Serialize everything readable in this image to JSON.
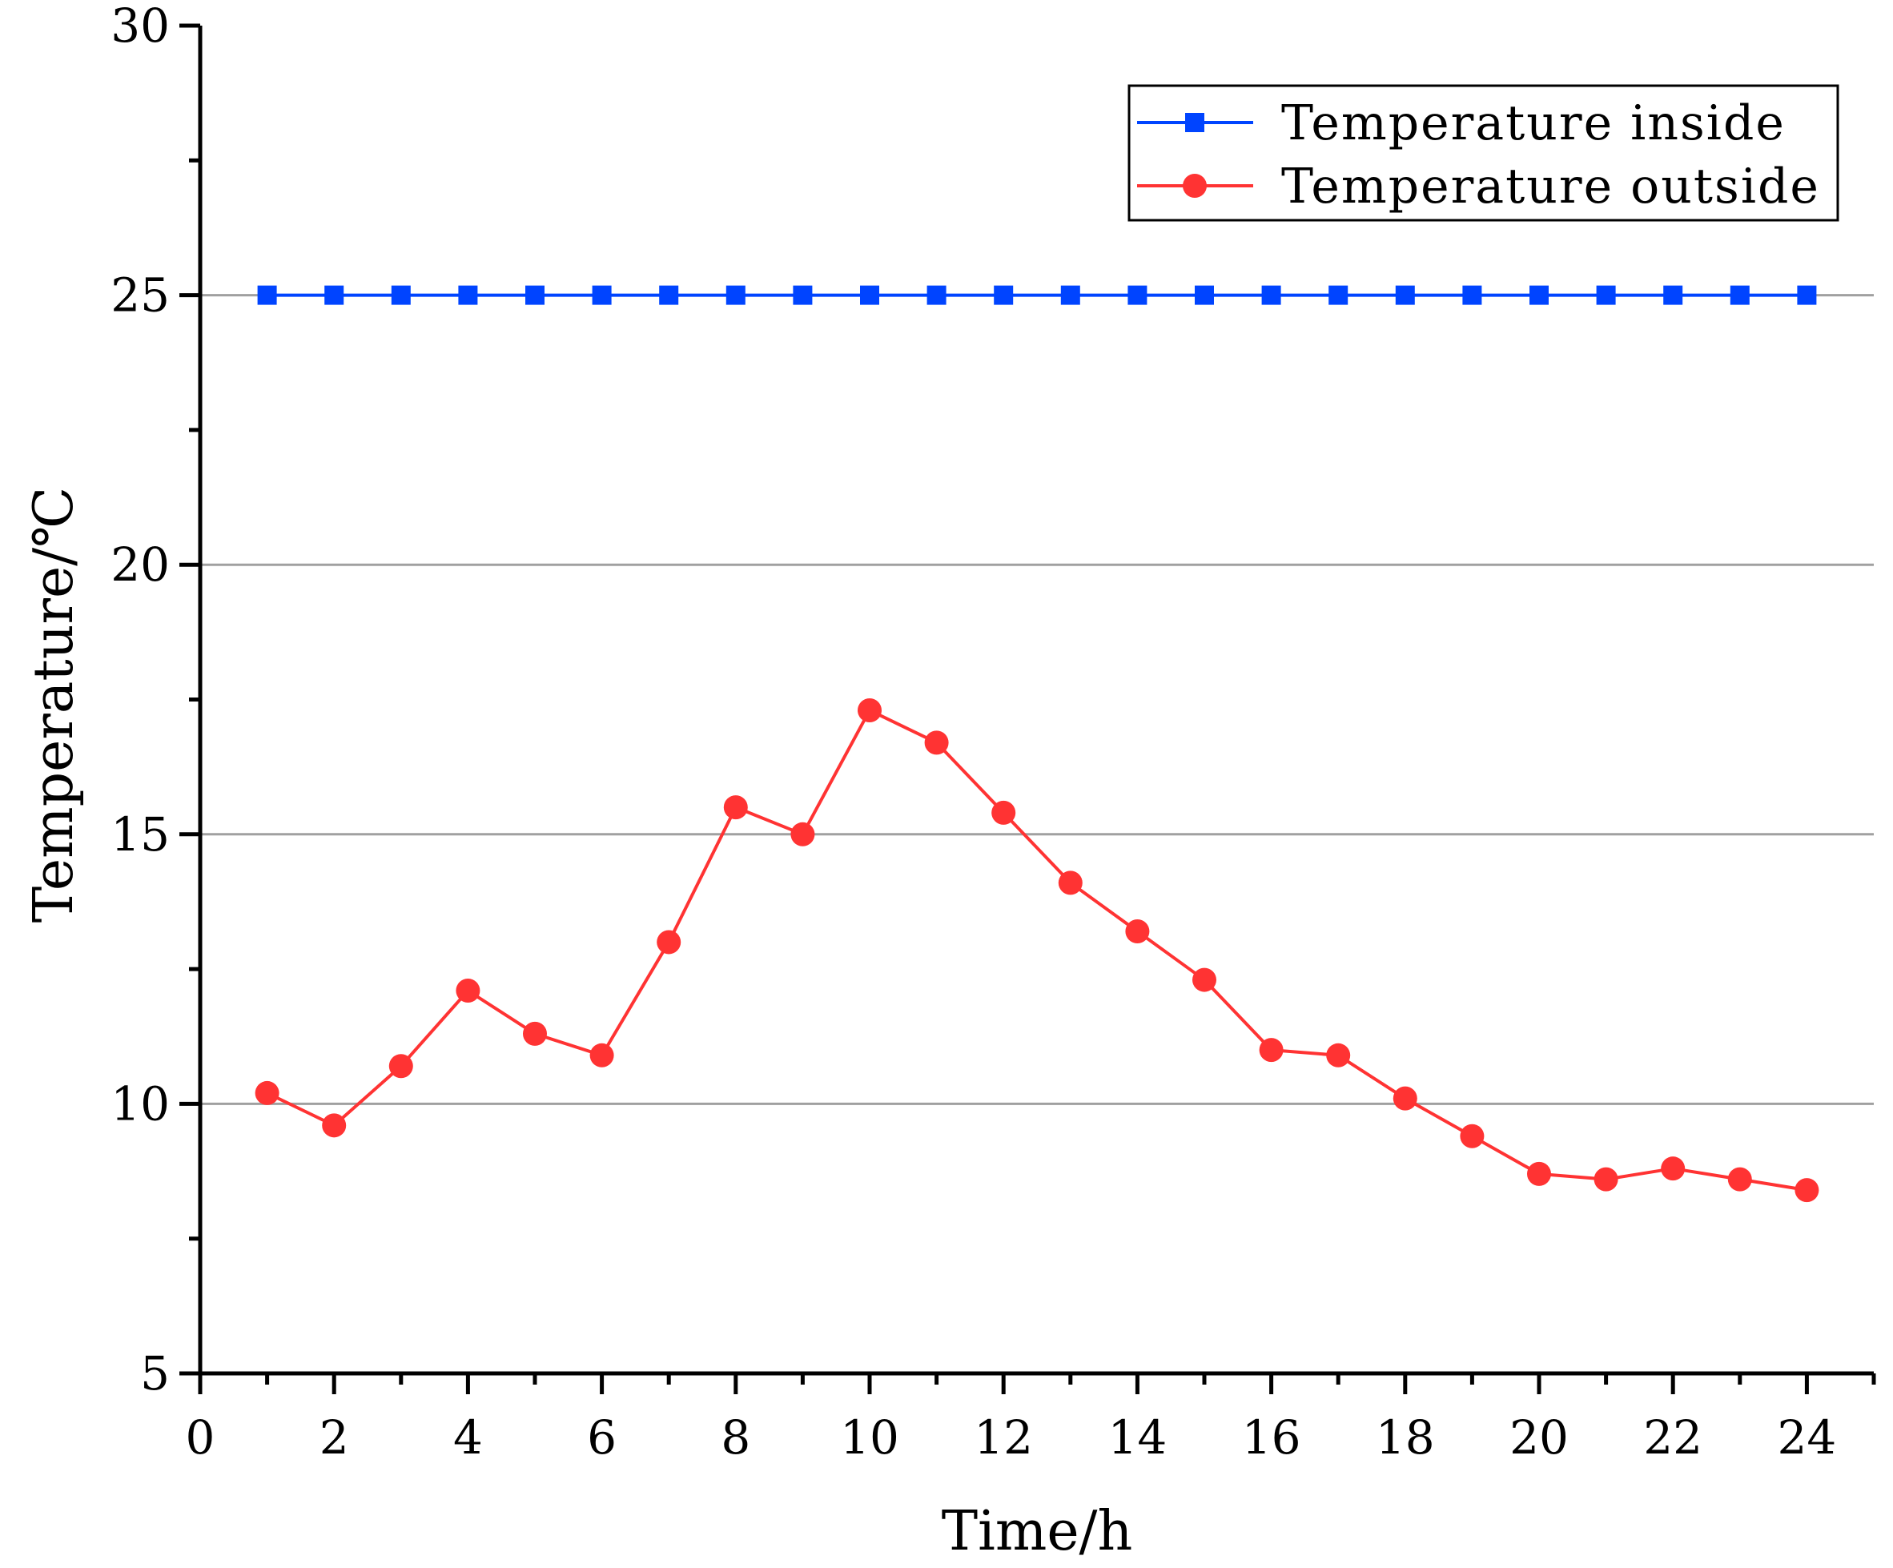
{
  "chart_data": {
    "type": "line",
    "xlabel": "Time/h",
    "ylabel": "Temperature/℃",
    "xlim": [
      0,
      25
    ],
    "ylim": [
      5,
      30
    ],
    "x_major_ticks": [
      0,
      2,
      4,
      6,
      8,
      10,
      12,
      14,
      16,
      18,
      20,
      22,
      24
    ],
    "x_minor_ticks": [
      1,
      3,
      5,
      7,
      9,
      11,
      13,
      15,
      17,
      19,
      21,
      23,
      25
    ],
    "y_major_ticks": [
      5,
      10,
      15,
      20,
      25,
      30
    ],
    "y_minor_ticks": [
      7.5,
      12.5,
      17.5,
      22.5,
      27.5
    ],
    "x_tick_labels": [
      "0",
      "2",
      "4",
      "6",
      "8",
      "10",
      "12",
      "14",
      "16",
      "18",
      "20",
      "22",
      "24"
    ],
    "y_tick_labels": [
      "5",
      "10",
      "15",
      "20",
      "25",
      "30"
    ],
    "grid": "horizontal major gridlines",
    "legend_position": "top-right",
    "x": [
      1,
      2,
      3,
      4,
      5,
      6,
      7,
      8,
      9,
      10,
      11,
      12,
      13,
      14,
      15,
      16,
      17,
      18,
      19,
      20,
      21,
      22,
      23,
      24
    ],
    "series": [
      {
        "name": "Temperature inside",
        "color": "#0044ff",
        "marker": "square",
        "values": [
          25,
          25,
          25,
          25,
          25,
          25,
          25,
          25,
          25,
          25,
          25,
          25,
          25,
          25,
          25,
          25,
          25,
          25,
          25,
          25,
          25,
          25,
          25,
          25
        ]
      },
      {
        "name": "Temperature outside",
        "color": "#ff3333",
        "marker": "circle",
        "values": [
          10.2,
          9.6,
          10.7,
          12.1,
          11.3,
          10.9,
          13.0,
          15.5,
          15.0,
          17.3,
          16.7,
          15.4,
          14.1,
          13.2,
          12.3,
          11.0,
          10.9,
          10.1,
          9.4,
          8.7,
          8.6,
          8.8,
          8.6,
          8.4
        ]
      }
    ]
  }
}
